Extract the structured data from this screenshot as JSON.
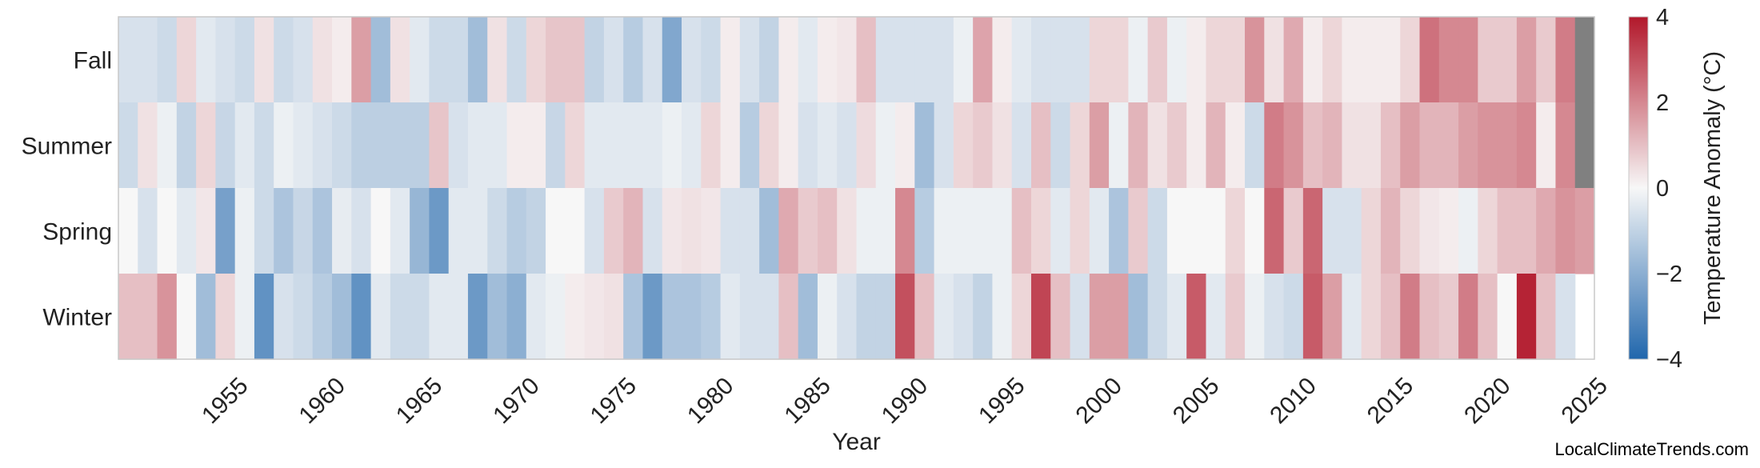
{
  "chart_data": {
    "type": "heatmap",
    "xlabel": "Year",
    "colorbar_label": "Temperature Anomaly (°C)",
    "colorbar_ticks": [
      "4",
      "2",
      "0",
      "−2",
      "−4"
    ],
    "color_range": [
      -4,
      4
    ],
    "colormap": {
      "low": "#2166ac",
      "mid": "#f7f7f7",
      "high": "#b2182b",
      "missing": "#808080"
    },
    "x_start": 1950,
    "x_end": 2025,
    "x_ticks": [
      "1955",
      "1960",
      "1965",
      "1970",
      "1975",
      "1980",
      "1985",
      "1990",
      "1995",
      "2000",
      "2005",
      "2010",
      "2015",
      "2020",
      "2025"
    ],
    "rows": [
      {
        "label": "Fall",
        "values": [
          -0.6,
          -0.6,
          -0.8,
          0.6,
          -0.4,
          -0.6,
          -0.8,
          0.4,
          -0.8,
          -0.6,
          0.4,
          0.2,
          1.6,
          -1.6,
          0.4,
          -0.4,
          -0.8,
          -0.8,
          -1.6,
          0.4,
          -0.8,
          0.6,
          0.9,
          0.9,
          -1.0,
          -0.6,
          -1.2,
          -0.6,
          -2.2,
          -0.6,
          -0.8,
          0.2,
          -0.6,
          -1.0,
          0.2,
          -0.4,
          0.2,
          0.3,
          1.0,
          -0.6,
          -0.6,
          -0.6,
          -0.6,
          -0.2,
          1.5,
          0.2,
          -0.4,
          -0.6,
          -0.6,
          -0.6,
          0.6,
          0.6,
          -0.2,
          0.8,
          -0.2,
          0.2,
          0.6,
          0.6,
          1.8,
          0.4,
          1.4,
          0.2,
          0.6,
          0.2,
          0.2,
          0.2,
          0.6,
          2.4,
          2.0,
          2.0,
          0.8,
          0.8,
          1.6,
          0.8,
          2.2,
          null
        ]
      },
      {
        "label": "Summer",
        "values": [
          -0.8,
          0.4,
          -0.2,
          -1.0,
          0.6,
          -0.9,
          -0.4,
          -0.8,
          -0.2,
          -0.4,
          -0.6,
          -0.8,
          -1.1,
          -1.1,
          -1.1,
          -1.1,
          0.9,
          -0.6,
          -0.4,
          -0.4,
          0.2,
          0.2,
          -0.9,
          0.6,
          -0.4,
          -0.4,
          -0.4,
          -0.4,
          -0.2,
          -0.4,
          0.6,
          0.2,
          -1.2,
          0.6,
          0.2,
          -0.6,
          -0.4,
          -0.6,
          0.5,
          -0.2,
          0.2,
          -1.6,
          -0.6,
          0.6,
          0.8,
          0.4,
          -0.6,
          1.0,
          -0.8,
          0.6,
          1.6,
          -0.2,
          1.2,
          0.4,
          0.8,
          0.2,
          1.2,
          0.2,
          -0.8,
          2.2,
          1.8,
          1.0,
          1.2,
          0.4,
          0.4,
          1.0,
          1.6,
          1.2,
          1.2,
          1.6,
          1.8,
          1.8,
          2.0,
          0.2,
          2.0,
          null
        ]
      },
      {
        "label": "Spring",
        "values": [
          0.0,
          -0.6,
          0.0,
          -0.4,
          0.3,
          -2.4,
          -0.2,
          -0.8,
          -1.4,
          -0.9,
          -1.4,
          -0.3,
          -0.6,
          0.0,
          -0.4,
          -1.8,
          -2.6,
          -0.4,
          -0.4,
          -0.8,
          -1.2,
          -1.0,
          0.0,
          0.0,
          -0.6,
          0.8,
          1.2,
          -0.6,
          0.3,
          0.4,
          0.3,
          -0.6,
          -0.6,
          -1.6,
          1.4,
          0.8,
          1.0,
          0.4,
          -0.2,
          -0.2,
          2.0,
          -1.2,
          -0.2,
          -0.2,
          -0.2,
          -0.2,
          1.0,
          0.6,
          -0.4,
          0.6,
          -0.4,
          -1.4,
          0.8,
          -0.8,
          0.0,
          0.0,
          0.0,
          0.6,
          0.0,
          2.6,
          0.8,
          2.6,
          -0.6,
          -0.6,
          0.6,
          1.2,
          0.6,
          0.3,
          0.2,
          -0.2,
          0.6,
          1.0,
          1.0,
          1.4,
          1.8,
          1.6
        ]
      },
      {
        "label": "Winter",
        "values": [
          1.0,
          1.0,
          1.8,
          0.0,
          -1.6,
          0.6,
          -0.2,
          -2.8,
          -0.6,
          -0.8,
          -1.2,
          -1.6,
          -2.8,
          -0.4,
          -0.8,
          -0.8,
          -0.4,
          -0.4,
          -2.6,
          -1.6,
          -2.0,
          -0.4,
          -0.2,
          0.2,
          0.3,
          0.4,
          -1.4,
          -2.6,
          -1.4,
          -1.4,
          -1.2,
          -0.4,
          -0.6,
          -0.6,
          1.0,
          -1.6,
          -0.2,
          -0.6,
          -1.0,
          -1.0,
          3.0,
          1.0,
          -0.4,
          -0.6,
          -1.0,
          -0.2,
          0.6,
          3.2,
          1.0,
          -0.6,
          1.6,
          1.6,
          -1.6,
          -0.8,
          -0.4,
          2.8,
          -0.4,
          0.8,
          -0.2,
          -0.6,
          -0.8,
          2.8,
          1.6,
          -0.4,
          0.6,
          1.0,
          2.2,
          1.0,
          0.8,
          2.2,
          1.0,
          0.0,
          3.8,
          1.0,
          -0.6
        ]
      }
    ]
  },
  "credit": "LocalClimateTrends.com"
}
